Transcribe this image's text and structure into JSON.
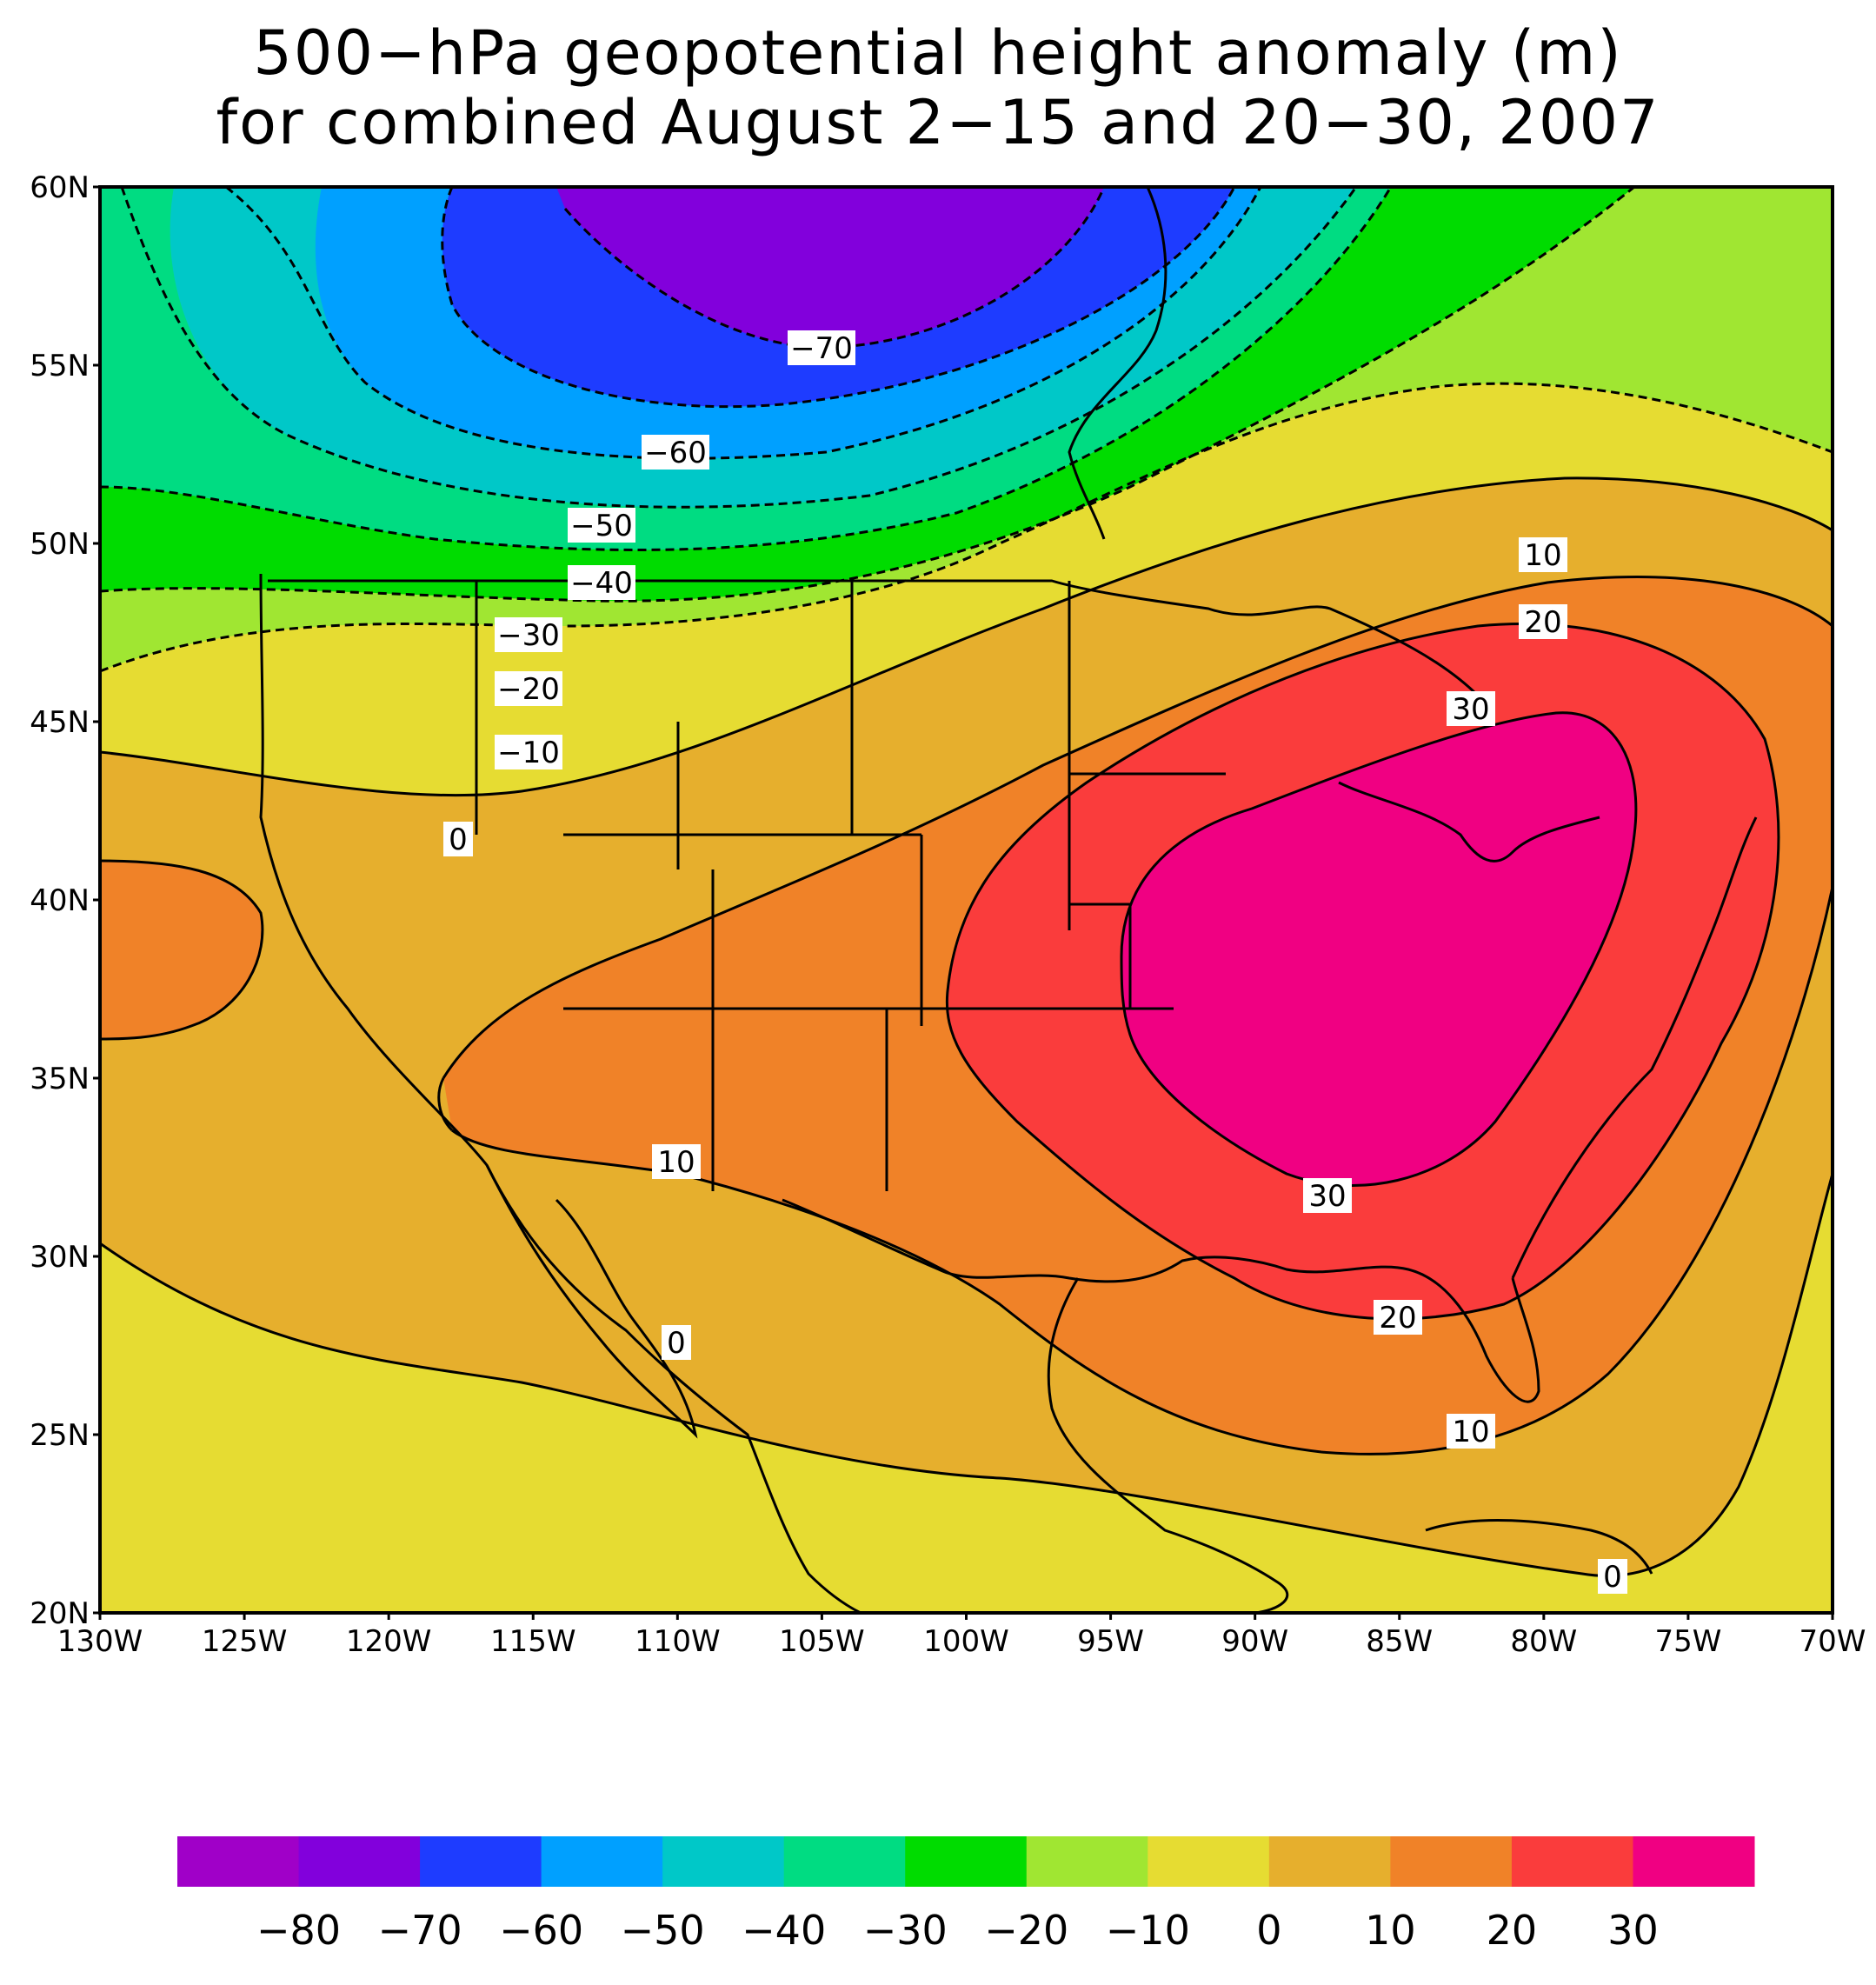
{
  "title": {
    "line1": "500−hPa geopotential height anomaly (m)",
    "line2": "for combined August 2−15 and 20−30, 2007"
  },
  "axes": {
    "lat_labels": [
      "60N",
      "55N",
      "50N",
      "45N",
      "40N",
      "35N",
      "30N",
      "25N",
      "20N"
    ],
    "lon_labels": [
      "130W",
      "125W",
      "120W",
      "115W",
      "110W",
      "105W",
      "100W",
      "95W",
      "90W",
      "85W",
      "80W",
      "75W",
      "70W"
    ],
    "lon_range": [
      -130,
      -70
    ],
    "lat_range": [
      20,
      60
    ]
  },
  "colorbar": {
    "labels": [
      "−80",
      "−70",
      "−60",
      "−50",
      "−40",
      "−30",
      "−20",
      "−10",
      "0",
      "10",
      "20",
      "30"
    ],
    "colors": [
      "#a000c8",
      "#8200dc",
      "#1e3cff",
      "#00a0ff",
      "#00c8c8",
      "#00dc82",
      "#00dc00",
      "#a0e632",
      "#e6dc32",
      "#e6af2d",
      "#f08228",
      "#fa3c3c",
      "#f00082"
    ]
  },
  "contour_labels": [
    {
      "text": "−70"
    },
    {
      "text": "−60"
    },
    {
      "text": "−50"
    },
    {
      "text": "−40"
    },
    {
      "text": "−30"
    },
    {
      "text": "−20"
    },
    {
      "text": "−10"
    },
    {
      "text": "0"
    },
    {
      "text": "10"
    },
    {
      "text": "20"
    },
    {
      "text": "30"
    },
    {
      "text": "30"
    },
    {
      "text": "20"
    },
    {
      "text": "10"
    },
    {
      "text": "0"
    },
    {
      "text": "10"
    },
    {
      "text": "0"
    }
  ],
  "colors": {
    "neg80": "#a000c8",
    "neg70": "#8200dc",
    "neg60": "#1e3cff",
    "neg50": "#00a0ff",
    "neg40": "#00c8c8",
    "neg30": "#00dc82",
    "neg20": "#00dc00",
    "neg10": "#a0e632",
    "zero": "#e6dc32",
    "pos10": "#e6af2d",
    "pos20": "#f08228",
    "pos30": "#fa3c3c",
    "pos40": "#f00082"
  }
}
